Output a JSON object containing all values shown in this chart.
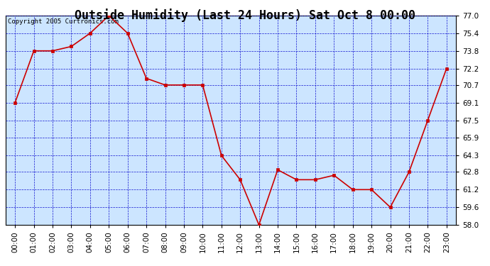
{
  "title": "Outside Humidity (Last 24 Hours) Sat Oct 8 00:00",
  "copyright": "Copyright 2005 Curtronics.com",
  "x_labels": [
    "00:00",
    "01:00",
    "02:00",
    "03:00",
    "04:00",
    "05:00",
    "06:00",
    "07:00",
    "08:00",
    "09:00",
    "10:00",
    "11:00",
    "12:00",
    "13:00",
    "14:00",
    "15:00",
    "16:00",
    "17:00",
    "18:00",
    "19:00",
    "20:00",
    "21:00",
    "22:00",
    "23:00"
  ],
  "x_values": [
    0,
    1,
    2,
    3,
    4,
    5,
    6,
    7,
    8,
    9,
    10,
    11,
    12,
    13,
    14,
    15,
    16,
    17,
    18,
    19,
    20,
    21,
    22,
    23
  ],
  "y_values": [
    69.1,
    73.8,
    73.8,
    74.2,
    75.4,
    77.0,
    75.4,
    71.3,
    70.7,
    70.7,
    70.7,
    64.3,
    62.1,
    58.0,
    63.0,
    62.1,
    62.1,
    62.5,
    61.2,
    61.2,
    59.6,
    62.8,
    67.5,
    72.2
  ],
  "ylim_min": 58.0,
  "ylim_max": 77.0,
  "yticks": [
    58.0,
    59.6,
    61.2,
    62.8,
    64.3,
    65.9,
    67.5,
    69.1,
    70.7,
    72.2,
    73.8,
    75.4,
    77.0
  ],
  "line_color": "#cc0000",
  "marker_color": "#cc0000",
  "background_color": "#ffffff",
  "plot_bg_color": "#cce5ff",
  "grid_color": "#0000cc",
  "title_fontsize": 12,
  "copyright_fontsize": 6.5,
  "tick_fontsize": 7.5
}
